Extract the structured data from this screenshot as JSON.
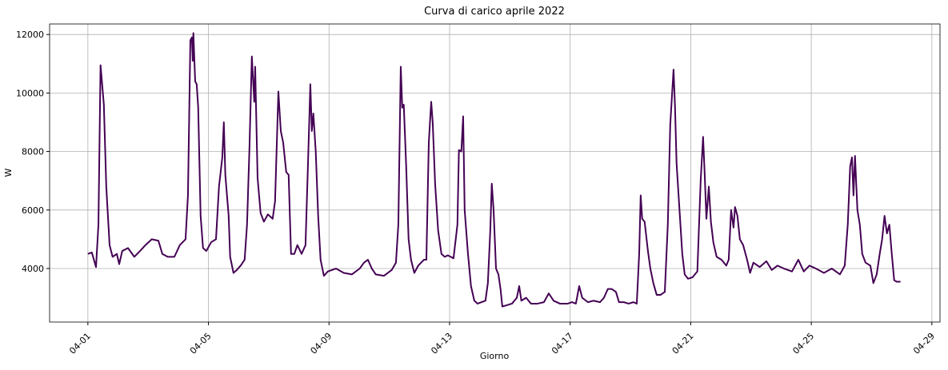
{
  "chart_data": {
    "type": "line",
    "title": "Curva di carico aprile 2022",
    "x_label": "Giorno",
    "y_label": "W",
    "color": "#440154",
    "grid": true,
    "xlim": [
      -0.27,
      29.27
    ],
    "ylim": [
      2170,
      12360
    ],
    "xticks": [
      {
        "value": 1,
        "label": "04-01"
      },
      {
        "value": 5,
        "label": "04-05"
      },
      {
        "value": 9,
        "label": "04-09"
      },
      {
        "value": 13,
        "label": "04-13"
      },
      {
        "value": 17,
        "label": "04-17"
      },
      {
        "value": 21,
        "label": "04-21"
      },
      {
        "value": 25,
        "label": "04-25"
      },
      {
        "value": 29,
        "label": "04-29"
      }
    ],
    "yticks": [
      4000,
      6000,
      8000,
      10000,
      12000
    ],
    "x": [
      1.0,
      1.13,
      1.27,
      1.35,
      1.42,
      1.53,
      1.61,
      1.72,
      1.82,
      1.96,
      2.04,
      2.14,
      2.33,
      2.54,
      2.73,
      2.91,
      3.12,
      3.34,
      3.47,
      3.65,
      3.87,
      4.05,
      4.24,
      4.32,
      4.4,
      4.45,
      4.48,
      4.5,
      4.56,
      4.61,
      4.66,
      4.74,
      4.82,
      4.93,
      5.09,
      5.25,
      5.35,
      5.46,
      5.51,
      5.56,
      5.67,
      5.72,
      5.83,
      5.94,
      6.07,
      6.2,
      6.28,
      6.36,
      6.44,
      6.52,
      6.55,
      6.63,
      6.73,
      6.84,
      6.97,
      7.13,
      7.21,
      7.32,
      7.4,
      7.48,
      7.58,
      7.66,
      7.74,
      7.85,
      7.95,
      8.09,
      8.22,
      8.3,
      8.38,
      8.43,
      8.48,
      8.56,
      8.64,
      8.72,
      8.83,
      8.96,
      9.23,
      9.49,
      9.76,
      10.02,
      10.16,
      10.29,
      10.42,
      10.55,
      10.82,
      11.08,
      11.22,
      11.3,
      11.38,
      11.43,
      11.48,
      11.56,
      11.64,
      11.72,
      11.83,
      11.96,
      12.15,
      12.23,
      12.31,
      12.39,
      12.44,
      12.52,
      12.62,
      12.73,
      12.84,
      12.94,
      13.13,
      13.26,
      13.31,
      13.39,
      13.45,
      13.5,
      13.61,
      13.71,
      13.82,
      13.93,
      14.06,
      14.19,
      14.27,
      14.35,
      14.4,
      14.46,
      14.54,
      14.62,
      14.69,
      14.75,
      14.91,
      15.07,
      15.23,
      15.31,
      15.38,
      15.54,
      15.7,
      15.92,
      16.13,
      16.29,
      16.45,
      16.66,
      16.92,
      17.06,
      17.19,
      17.3,
      17.4,
      17.59,
      17.77,
      17.99,
      18.12,
      18.25,
      18.38,
      18.52,
      18.62,
      18.78,
      18.94,
      19.1,
      19.21,
      19.29,
      19.34,
      19.39,
      19.47,
      19.58,
      19.66,
      19.76,
      19.87,
      20.0,
      20.14,
      20.24,
      20.32,
      20.43,
      20.48,
      20.53,
      20.64,
      20.72,
      20.8,
      20.91,
      21.06,
      21.22,
      21.33,
      21.41,
      21.46,
      21.52,
      21.6,
      21.67,
      21.75,
      21.86,
      22.02,
      22.18,
      22.26,
      22.34,
      22.42,
      22.47,
      22.55,
      22.63,
      22.74,
      22.87,
      22.97,
      23.08,
      23.29,
      23.51,
      23.69,
      23.88,
      24.09,
      24.36,
      24.57,
      24.75,
      24.94,
      25.15,
      25.42,
      25.68,
      25.95,
      26.11,
      26.21,
      26.29,
      26.35,
      26.4,
      26.45,
      26.53,
      26.61,
      26.69,
      26.8,
      26.96,
      27.06,
      27.17,
      27.27,
      27.35,
      27.43,
      27.51,
      27.59,
      27.67,
      27.75,
      27.83,
      27.96
    ],
    "values": [
      4500,
      4550,
      4050,
      5500,
      10950,
      9600,
      6800,
      4800,
      4400,
      4500,
      4150,
      4600,
      4700,
      4400,
      4600,
      4800,
      5000,
      4950,
      4500,
      4400,
      4400,
      4800,
      5000,
      6500,
      11800,
      11900,
      11100,
      12050,
      10400,
      10300,
      9500,
      5800,
      4700,
      4600,
      4900,
      5000,
      6800,
      7800,
      9000,
      7200,
      5800,
      4400,
      3850,
      3950,
      4100,
      4300,
      5500,
      8100,
      11250,
      9700,
      10900,
      7100,
      5900,
      5600,
      5850,
      5700,
      6300,
      10050,
      8700,
      8300,
      7300,
      7200,
      4500,
      4500,
      4800,
      4500,
      4800,
      7500,
      10300,
      8700,
      9300,
      8000,
      5800,
      4300,
      3750,
      3900,
      4000,
      3850,
      3800,
      4000,
      4200,
      4300,
      4000,
      3800,
      3750,
      3950,
      4200,
      5500,
      10900,
      9500,
      9600,
      7500,
      5000,
      4300,
      3850,
      4100,
      4300,
      4300,
      8300,
      9700,
      9000,
      6900,
      5300,
      4500,
      4400,
      4450,
      4350,
      5500,
      8050,
      8000,
      9200,
      6000,
      4500,
      3400,
      2900,
      2800,
      2850,
      2900,
      3500,
      5300,
      6900,
      6000,
      4000,
      3800,
      3300,
      2700,
      2750,
      2800,
      3000,
      3400,
      2900,
      3000,
      2800,
      2800,
      2850,
      3150,
      2900,
      2800,
      2800,
      2850,
      2800,
      3400,
      3000,
      2850,
      2900,
      2850,
      3000,
      3300,
      3300,
      3200,
      2850,
      2850,
      2800,
      2850,
      2800,
      4500,
      6500,
      5700,
      5600,
      4600,
      4000,
      3500,
      3100,
      3100,
      3200,
      5500,
      8900,
      10800,
      9500,
      7600,
      5800,
      4500,
      3800,
      3650,
      3700,
      3900,
      7000,
      8500,
      7300,
      5700,
      6800,
      5600,
      4900,
      4400,
      4300,
      4100,
      4300,
      6000,
      5400,
      6100,
      5800,
      5000,
      4800,
      4300,
      3850,
      4200,
      4050,
      4250,
      3950,
      4100,
      4000,
      3900,
      4300,
      3900,
      4100,
      4000,
      3850,
      4000,
      3800,
      4100,
      5500,
      7500,
      7800,
      6500,
      7850,
      6000,
      5500,
      4500,
      4200,
      4100,
      3500,
      3800,
      4500,
      5000,
      5800,
      5200,
      5500,
      4500,
      3600,
      3550,
      3550
    ]
  }
}
